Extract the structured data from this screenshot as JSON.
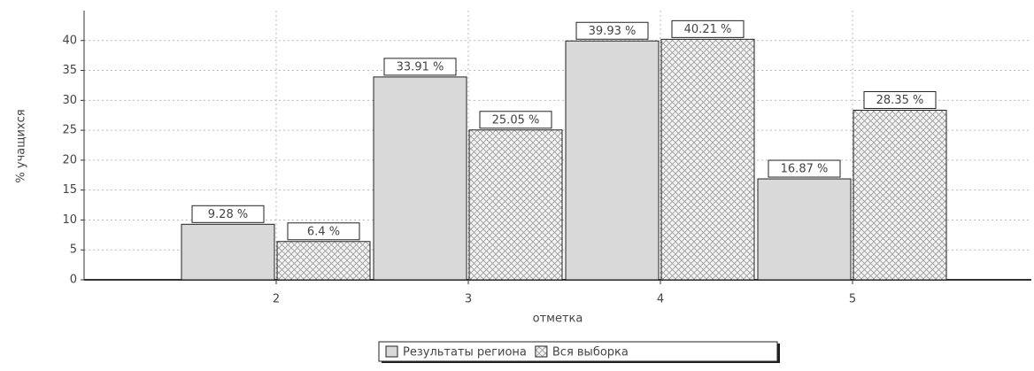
{
  "chart_data": {
    "type": "bar",
    "categories": [
      "2",
      "3",
      "4",
      "5"
    ],
    "series": [
      {
        "name": "Результаты региона",
        "color": "#d9d9d9",
        "values": [
          9.28,
          33.91,
          39.93,
          16.87
        ],
        "value_labels": [
          "9.28 %",
          "33.91 %",
          "39.93 %",
          "16.87 %"
        ]
      },
      {
        "name": "Вся выборка",
        "color": "#f4f4f4",
        "pattern": "crosshatch",
        "values": [
          6.4,
          25.05,
          40.21,
          28.35
        ],
        "value_labels": [
          "6.4 %",
          "25.05 %",
          "40.21 %",
          "28.35 %"
        ]
      }
    ],
    "ylabel": "% учащихся",
    "xlabel": "отметка",
    "ylim": [
      0,
      45
    ],
    "yticks": [
      0,
      5,
      10,
      15,
      20,
      25,
      30,
      35,
      40
    ],
    "grid": true,
    "legend": "bottom"
  }
}
